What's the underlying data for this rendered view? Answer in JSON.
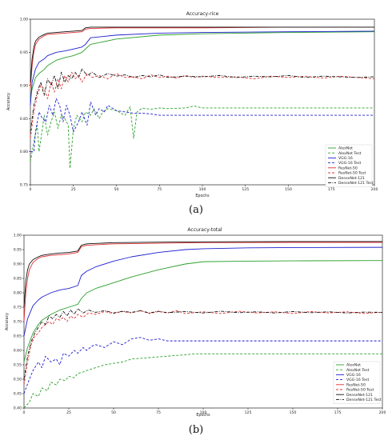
{
  "chart_data": [
    {
      "type": "line",
      "title": "Accuracy-rice",
      "subfigure_label": "(a)",
      "xlabel": "Epochs",
      "ylabel": "Accuracy",
      "xlim": [
        0,
        200
      ],
      "ylim": [
        0.75,
        1.0
      ],
      "xticks": [
        "0",
        "25",
        "50",
        "75",
        "100",
        "125",
        "150",
        "175",
        "200"
      ],
      "yticks": [
        "0.75",
        "0.80",
        "0.85",
        "0.90",
        "0.95",
        "1.00"
      ],
      "grid": false,
      "legend_position": "bottom-right",
      "series": [
        {
          "name": "AlexNet",
          "color": "#2ca02c",
          "dash": "solid",
          "x": [
            0,
            1,
            3,
            5,
            8,
            10,
            15,
            20,
            25,
            30,
            32,
            35,
            50,
            75,
            100,
            150,
            200
          ],
          "y": [
            0.88,
            0.895,
            0.912,
            0.918,
            0.924,
            0.93,
            0.938,
            0.942,
            0.945,
            0.95,
            0.955,
            0.962,
            0.97,
            0.976,
            0.978,
            0.98,
            0.981
          ]
        },
        {
          "name": "AlexNet Test",
          "color": "#2ca02c",
          "dash": "dashed",
          "x": [
            0,
            2,
            4,
            5,
            7,
            8,
            10,
            12,
            14,
            16,
            18,
            20,
            22,
            23,
            25,
            27,
            30,
            32,
            35,
            37,
            40,
            42,
            45,
            50,
            55,
            58,
            60,
            62,
            65,
            70,
            75,
            80,
            90,
            95,
            100,
            150,
            200
          ],
          "y": [
            0.785,
            0.815,
            0.84,
            0.8,
            0.835,
            0.855,
            0.825,
            0.845,
            0.86,
            0.835,
            0.855,
            0.85,
            0.84,
            0.775,
            0.835,
            0.855,
            0.845,
            0.86,
            0.855,
            0.865,
            0.85,
            0.86,
            0.865,
            0.862,
            0.855,
            0.868,
            0.82,
            0.86,
            0.866,
            0.864,
            0.866,
            0.865,
            0.866,
            0.869,
            0.866,
            0.866,
            0.866
          ]
        },
        {
          "name": "VGG-16",
          "color": "#1f1fd0",
          "dash": "solid",
          "x": [
            0,
            1,
            3,
            5,
            8,
            10,
            15,
            20,
            25,
            30,
            32,
            35,
            50,
            75,
            100,
            150,
            200
          ],
          "y": [
            0.87,
            0.905,
            0.925,
            0.935,
            0.94,
            0.945,
            0.95,
            0.952,
            0.955,
            0.958,
            0.962,
            0.972,
            0.976,
            0.979,
            0.98,
            0.981,
            0.982
          ]
        },
        {
          "name": "VGG-16 Test",
          "color": "#1f1fd0",
          "dash": "dashed",
          "x": [
            0,
            2,
            3,
            5,
            7,
            9,
            11,
            13,
            15,
            17,
            19,
            21,
            23,
            25,
            28,
            30,
            33,
            35,
            38,
            40,
            43,
            45,
            50,
            55,
            60,
            65,
            70,
            75,
            100,
            150,
            200
          ],
          "y": [
            0.8,
            0.8,
            0.83,
            0.86,
            0.85,
            0.845,
            0.87,
            0.855,
            0.88,
            0.87,
            0.845,
            0.87,
            0.855,
            0.83,
            0.845,
            0.86,
            0.84,
            0.875,
            0.855,
            0.865,
            0.86,
            0.87,
            0.862,
            0.86,
            0.858,
            0.858,
            0.857,
            0.855,
            0.855,
            0.855,
            0.855
          ]
        },
        {
          "name": "ResNet-50",
          "color": "#e03030",
          "dash": "solid",
          "x": [
            0,
            1,
            2,
            3,
            5,
            8,
            10,
            15,
            20,
            25,
            30,
            32,
            35,
            50,
            75,
            100,
            150,
            200
          ],
          "y": [
            0.895,
            0.93,
            0.95,
            0.962,
            0.97,
            0.975,
            0.977,
            0.978,
            0.979,
            0.98,
            0.981,
            0.985,
            0.986,
            0.987,
            0.987,
            0.987,
            0.988,
            0.988
          ]
        },
        {
          "name": "ResNet-50 Test",
          "color": "#e03030",
          "dash": "dashed",
          "x": [
            0,
            2,
            4,
            6,
            8,
            10,
            12,
            14,
            16,
            18,
            20,
            22,
            24,
            26,
            28,
            30,
            33,
            36,
            40,
            45,
            50,
            55,
            60,
            65,
            70,
            75,
            80,
            85,
            90,
            95,
            100,
            110,
            120,
            130,
            140,
            150,
            160,
            170,
            180,
            190,
            200
          ],
          "y": [
            0.82,
            0.86,
            0.885,
            0.9,
            0.895,
            0.88,
            0.905,
            0.89,
            0.91,
            0.895,
            0.915,
            0.905,
            0.92,
            0.91,
            0.915,
            0.905,
            0.918,
            0.912,
            0.915,
            0.91,
            0.918,
            0.912,
            0.913,
            0.91,
            0.916,
            0.912,
            0.914,
            0.911,
            0.915,
            0.912,
            0.914,
            0.912,
            0.913,
            0.91,
            0.914,
            0.912,
            0.914,
            0.911,
            0.914,
            0.912,
            0.91
          ]
        },
        {
          "name": "DenseNet-121",
          "color": "#111111",
          "dash": "solid",
          "x": [
            0,
            1,
            2,
            3,
            5,
            8,
            10,
            15,
            20,
            25,
            30,
            32,
            35,
            50,
            75,
            100,
            150,
            200
          ],
          "y": [
            0.905,
            0.94,
            0.958,
            0.967,
            0.973,
            0.977,
            0.979,
            0.98,
            0.981,
            0.982,
            0.983,
            0.987,
            0.988,
            0.988,
            0.988,
            0.988,
            0.988,
            0.988
          ]
        },
        {
          "name": "DenseNet-121 Test",
          "color": "#111111",
          "dash": "dashdot",
          "x": [
            0,
            2,
            4,
            6,
            8,
            10,
            12,
            14,
            16,
            18,
            20,
            22,
            24,
            26,
            28,
            30,
            33,
            36,
            40,
            45,
            50,
            55,
            60,
            65,
            70,
            75,
            80,
            90,
            100,
            110,
            120,
            130,
            140,
            150,
            160,
            170,
            180,
            190,
            200
          ],
          "y": [
            0.83,
            0.87,
            0.89,
            0.905,
            0.885,
            0.91,
            0.9,
            0.915,
            0.895,
            0.92,
            0.905,
            0.915,
            0.91,
            0.92,
            0.912,
            0.925,
            0.915,
            0.92,
            0.912,
            0.918,
            0.914,
            0.916,
            0.912,
            0.915,
            0.913,
            0.916,
            0.912,
            0.914,
            0.913,
            0.915,
            0.912,
            0.914,
            0.913,
            0.915,
            0.912,
            0.914,
            0.913,
            0.912,
            0.913
          ]
        }
      ]
    },
    {
      "type": "line",
      "title": "Accuracy-total",
      "subfigure_label": "(b)",
      "xlabel": "Epochs",
      "ylabel": "Accuracy",
      "xlim": [
        0,
        200
      ],
      "ylim": [
        0.4,
        1.0
      ],
      "xticks": [
        "0",
        "25",
        "50",
        "75",
        "100",
        "125",
        "150",
        "175",
        "200"
      ],
      "yticks": [
        "0.40",
        "0.45",
        "0.50",
        "0.55",
        "0.60",
        "0.65",
        "0.70",
        "0.75",
        "0.80",
        "0.85",
        "0.90",
        "0.95",
        "1.00"
      ],
      "grid": false,
      "legend_position": "bottom-right",
      "series": [
        {
          "name": "AlexNet",
          "color": "#2ca02c",
          "dash": "solid",
          "x": [
            0,
            2,
            5,
            8,
            10,
            15,
            20,
            25,
            30,
            32,
            35,
            40,
            50,
            60,
            75,
            90,
            100,
            125,
            150,
            200
          ],
          "y": [
            0.56,
            0.61,
            0.66,
            0.69,
            0.705,
            0.725,
            0.74,
            0.75,
            0.76,
            0.78,
            0.8,
            0.815,
            0.835,
            0.855,
            0.88,
            0.9,
            0.908,
            0.91,
            0.911,
            0.912
          ]
        },
        {
          "name": "AlexNet Test",
          "color": "#2ca02c",
          "dash": "dashed",
          "x": [
            0,
            3,
            5,
            8,
            10,
            13,
            15,
            18,
            20,
            23,
            25,
            28,
            30,
            33,
            35,
            40,
            45,
            50,
            55,
            60,
            70,
            80,
            90,
            95,
            100,
            150,
            200
          ],
          "y": [
            0.4,
            0.42,
            0.45,
            0.44,
            0.47,
            0.46,
            0.49,
            0.48,
            0.5,
            0.495,
            0.51,
            0.505,
            0.52,
            0.525,
            0.53,
            0.54,
            0.55,
            0.555,
            0.56,
            0.57,
            0.575,
            0.58,
            0.585,
            0.588,
            0.588,
            0.588,
            0.588
          ]
        },
        {
          "name": "VGG-16",
          "color": "#1f1fd0",
          "dash": "solid",
          "x": [
            0,
            2,
            5,
            8,
            10,
            15,
            20,
            25,
            30,
            32,
            35,
            40,
            50,
            60,
            75,
            90,
            100,
            125,
            150,
            200
          ],
          "y": [
            0.65,
            0.71,
            0.755,
            0.775,
            0.785,
            0.8,
            0.81,
            0.815,
            0.825,
            0.86,
            0.875,
            0.89,
            0.91,
            0.925,
            0.94,
            0.95,
            0.953,
            0.956,
            0.957,
            0.958
          ]
        },
        {
          "name": "VGG-16 Test",
          "color": "#1f1fd0",
          "dash": "dashed",
          "x": [
            0,
            3,
            5,
            8,
            10,
            12,
            15,
            18,
            20,
            22,
            25,
            28,
            30,
            33,
            35,
            38,
            40,
            45,
            50,
            55,
            60,
            65,
            70,
            75,
            80,
            90,
            100,
            150,
            200
          ],
          "y": [
            0.45,
            0.5,
            0.53,
            0.56,
            0.54,
            0.58,
            0.56,
            0.57,
            0.55,
            0.59,
            0.58,
            0.6,
            0.59,
            0.61,
            0.6,
            0.615,
            0.62,
            0.61,
            0.63,
            0.62,
            0.64,
            0.645,
            0.635,
            0.64,
            0.633,
            0.633,
            0.633,
            0.633,
            0.633
          ]
        },
        {
          "name": "ResNet-50",
          "color": "#e03030",
          "dash": "solid",
          "x": [
            0,
            1,
            2,
            3,
            5,
            8,
            10,
            15,
            20,
            25,
            30,
            32,
            35,
            50,
            75,
            100,
            150,
            200
          ],
          "y": [
            0.7,
            0.8,
            0.85,
            0.88,
            0.905,
            0.92,
            0.925,
            0.93,
            0.932,
            0.935,
            0.94,
            0.96,
            0.965,
            0.97,
            0.972,
            0.974,
            0.975,
            0.975
          ]
        },
        {
          "name": "ResNet-50 Test",
          "color": "#e03030",
          "dash": "dashed",
          "x": [
            0,
            2,
            4,
            6,
            8,
            10,
            12,
            14,
            16,
            18,
            20,
            22,
            24,
            26,
            28,
            30,
            33,
            36,
            40,
            45,
            50,
            55,
            60,
            65,
            70,
            75,
            80,
            85,
            90,
            100,
            110,
            120,
            130,
            140,
            150,
            160,
            170,
            180,
            190,
            200
          ],
          "y": [
            0.48,
            0.56,
            0.62,
            0.65,
            0.66,
            0.68,
            0.69,
            0.7,
            0.69,
            0.71,
            0.705,
            0.715,
            0.7,
            0.72,
            0.71,
            0.725,
            0.715,
            0.73,
            0.725,
            0.735,
            0.728,
            0.735,
            0.73,
            0.738,
            0.728,
            0.735,
            0.73,
            0.738,
            0.728,
            0.734,
            0.728,
            0.736,
            0.73,
            0.734,
            0.728,
            0.735,
            0.73,
            0.734,
            0.728,
            0.733
          ]
        },
        {
          "name": "DenseNet-121",
          "color": "#111111",
          "dash": "solid",
          "x": [
            0,
            1,
            2,
            3,
            5,
            8,
            10,
            15,
            20,
            25,
            30,
            32,
            35,
            50,
            75,
            100,
            150,
            200
          ],
          "y": [
            0.75,
            0.84,
            0.88,
            0.9,
            0.915,
            0.925,
            0.93,
            0.935,
            0.938,
            0.94,
            0.945,
            0.965,
            0.97,
            0.974,
            0.976,
            0.977,
            0.978,
            0.978
          ]
        },
        {
          "name": "DenseNet-121 Test",
          "color": "#111111",
          "dash": "dashdot",
          "x": [
            0,
            2,
            4,
            6,
            8,
            10,
            12,
            14,
            16,
            18,
            20,
            22,
            24,
            26,
            28,
            30,
            33,
            36,
            40,
            45,
            50,
            55,
            60,
            65,
            70,
            75,
            80,
            90,
            100,
            110,
            120,
            130,
            140,
            150,
            160,
            170,
            180,
            190,
            200
          ],
          "y": [
            0.5,
            0.58,
            0.63,
            0.66,
            0.68,
            0.7,
            0.69,
            0.72,
            0.71,
            0.725,
            0.715,
            0.735,
            0.72,
            0.74,
            0.725,
            0.745,
            0.73,
            0.74,
            0.732,
            0.738,
            0.73,
            0.736,
            0.732,
            0.738,
            0.73,
            0.736,
            0.731,
            0.735,
            0.73,
            0.736,
            0.731,
            0.734,
            0.73,
            0.735,
            0.731,
            0.734,
            0.73,
            0.733,
            0.732
          ]
        }
      ]
    }
  ]
}
